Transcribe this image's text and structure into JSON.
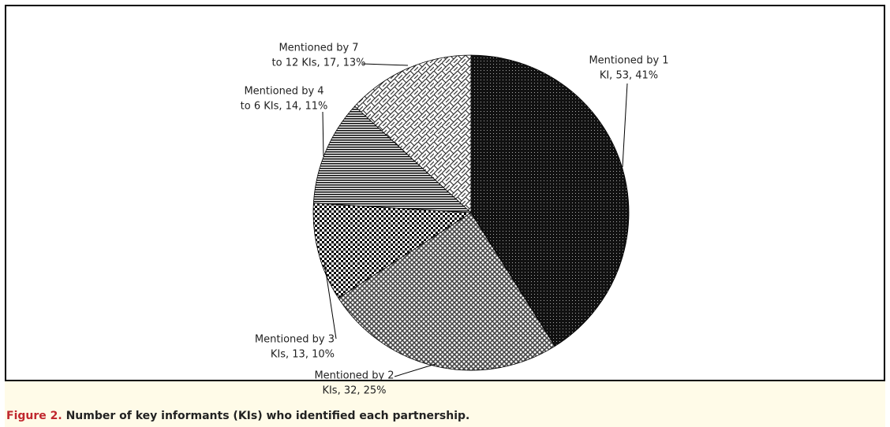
{
  "chart_data": {
    "type": "pie",
    "values": [
      53,
      32,
      13,
      14,
      17
    ],
    "value_labels": [
      [
        "Mentioned by 1",
        "KI, 53, 41%"
      ],
      [
        "Mentioned by 2",
        "KIs, 32, 25%"
      ],
      [
        "Mentioned by 3",
        "KIs, 13, 10%"
      ],
      [
        "Mentioned by 4",
        "to 6 KIs, 14, 11%"
      ],
      [
        "Mentioned by 7",
        "to 12 KIs, 17, 13%"
      ]
    ]
  },
  "caption": {
    "label": "Figure 2.",
    "text": "Number of key informants (KIs) who identified each partnership."
  }
}
